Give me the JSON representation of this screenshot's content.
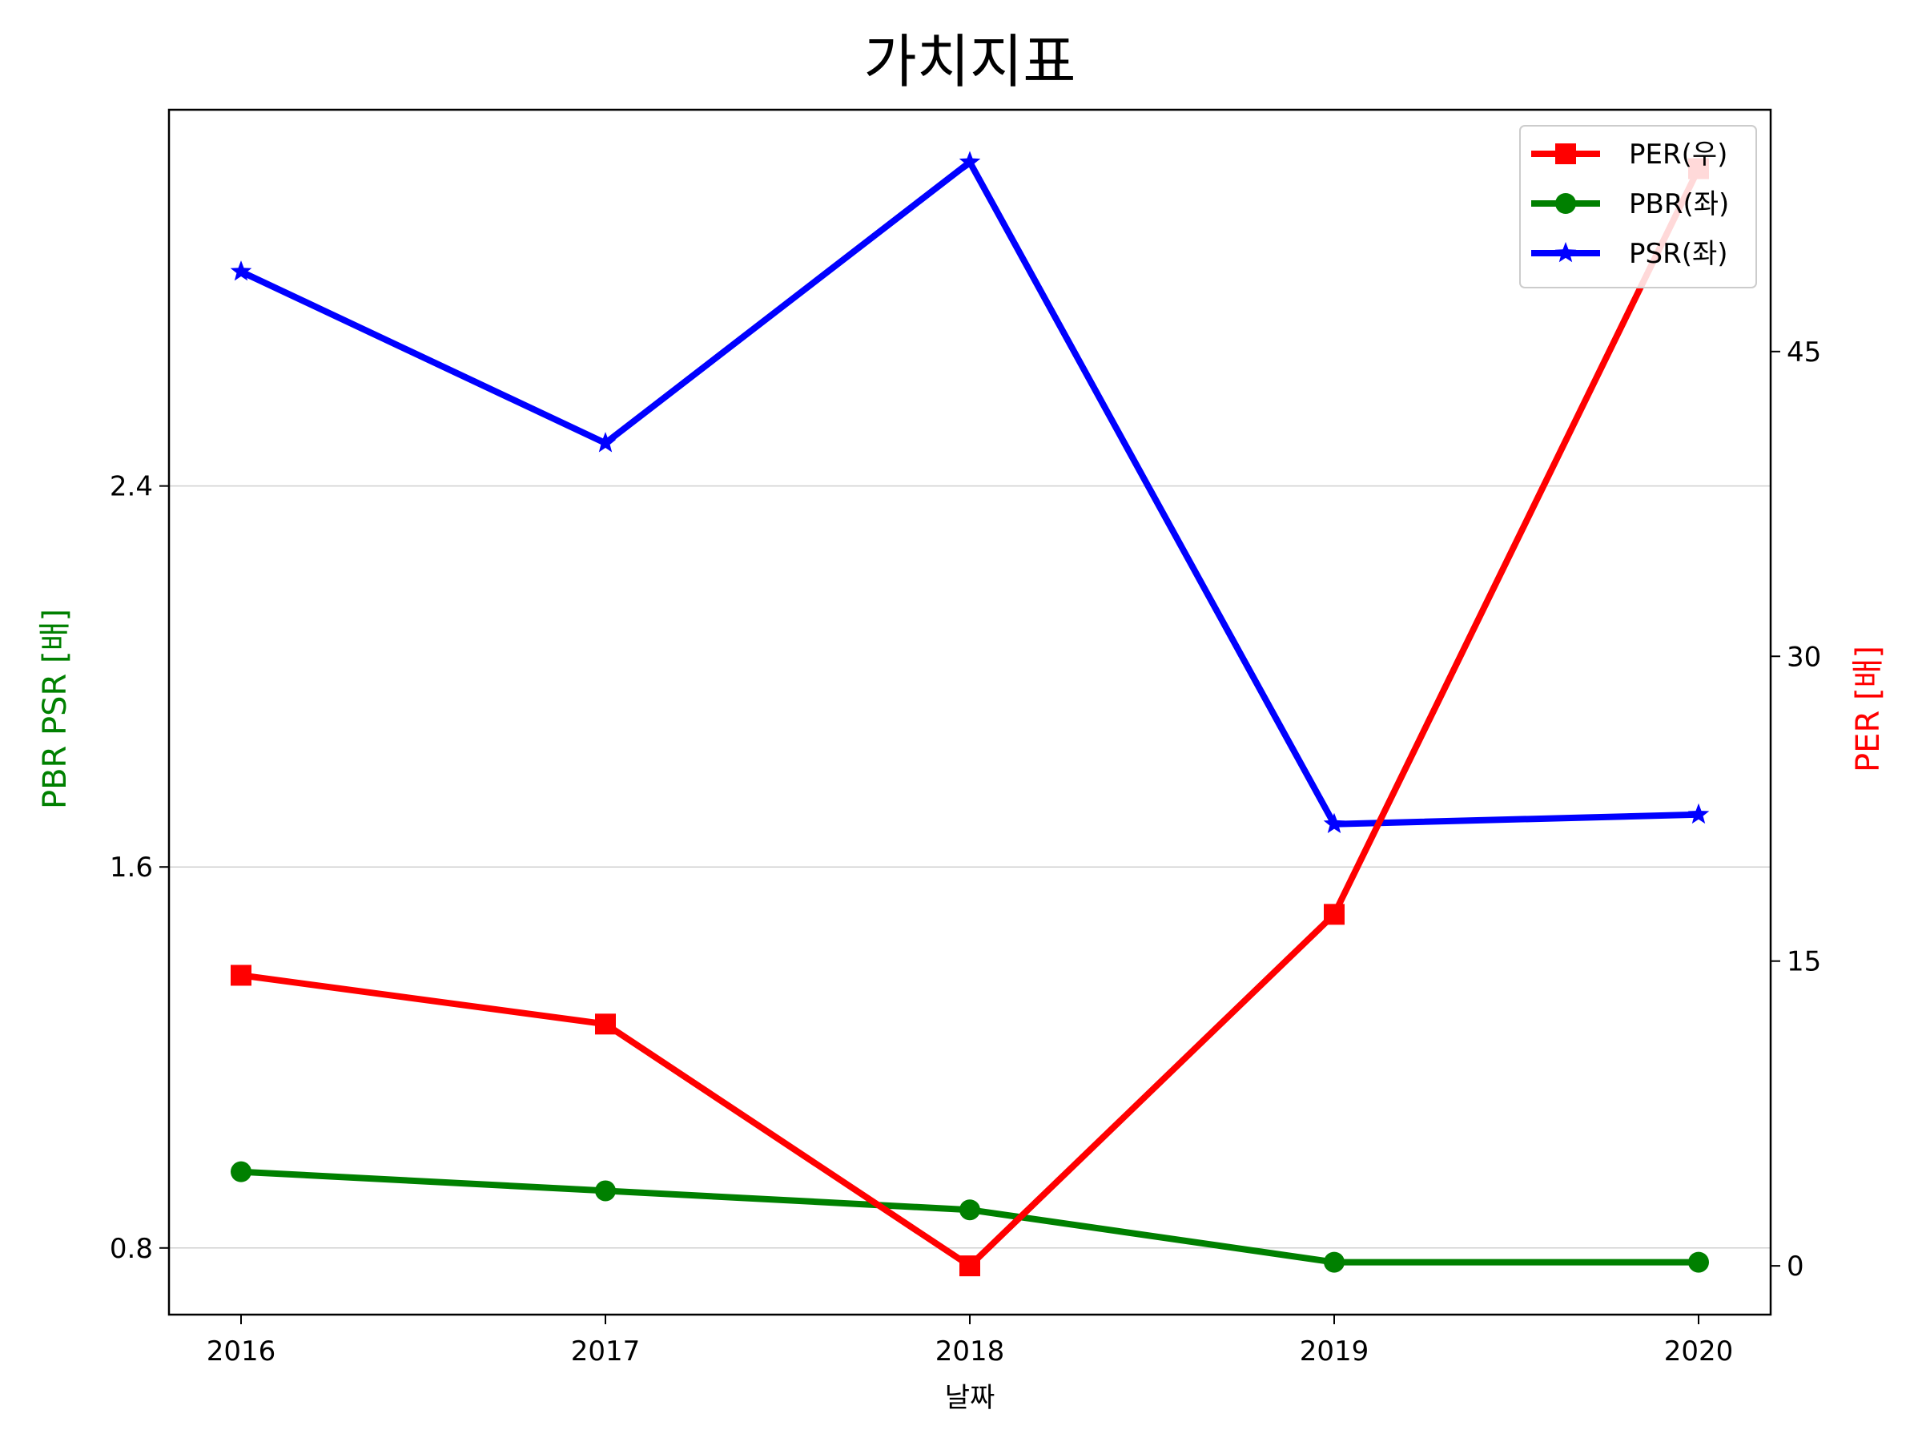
{
  "chart_data": {
    "type": "line",
    "title": "가치지표",
    "xlabel": "날짜",
    "ylabel_left": "PBR PSR [배]",
    "ylabel_right": "PER [배]",
    "categories": [
      "2016",
      "2017",
      "2018",
      "2019",
      "2020"
    ],
    "left_axis": {
      "ylim": [
        0.66,
        3.19
      ],
      "ticks": [
        "0.8",
        "1.6",
        "2.4"
      ]
    },
    "right_axis": {
      "ylim": [
        -2.4,
        56.9
      ],
      "ticks": [
        "0",
        "15",
        "30",
        "45"
      ]
    },
    "grid": "horizontal (left axis)",
    "legend_position": "top-right",
    "series": [
      {
        "name": "PER(우)",
        "axis": "right",
        "color": "#ff0000",
        "marker": "square",
        "values": [
          14.3,
          11.9,
          0.0,
          17.3,
          54.0
        ]
      },
      {
        "name": "PBR(좌)",
        "axis": "left",
        "color": "#008000",
        "marker": "circle",
        "values": [
          0.96,
          0.92,
          0.88,
          0.77,
          0.77
        ]
      },
      {
        "name": "PSR(좌)",
        "axis": "left",
        "color": "#0000ff",
        "marker": "star",
        "values": [
          2.85,
          2.49,
          3.08,
          1.69,
          1.71
        ]
      }
    ]
  }
}
